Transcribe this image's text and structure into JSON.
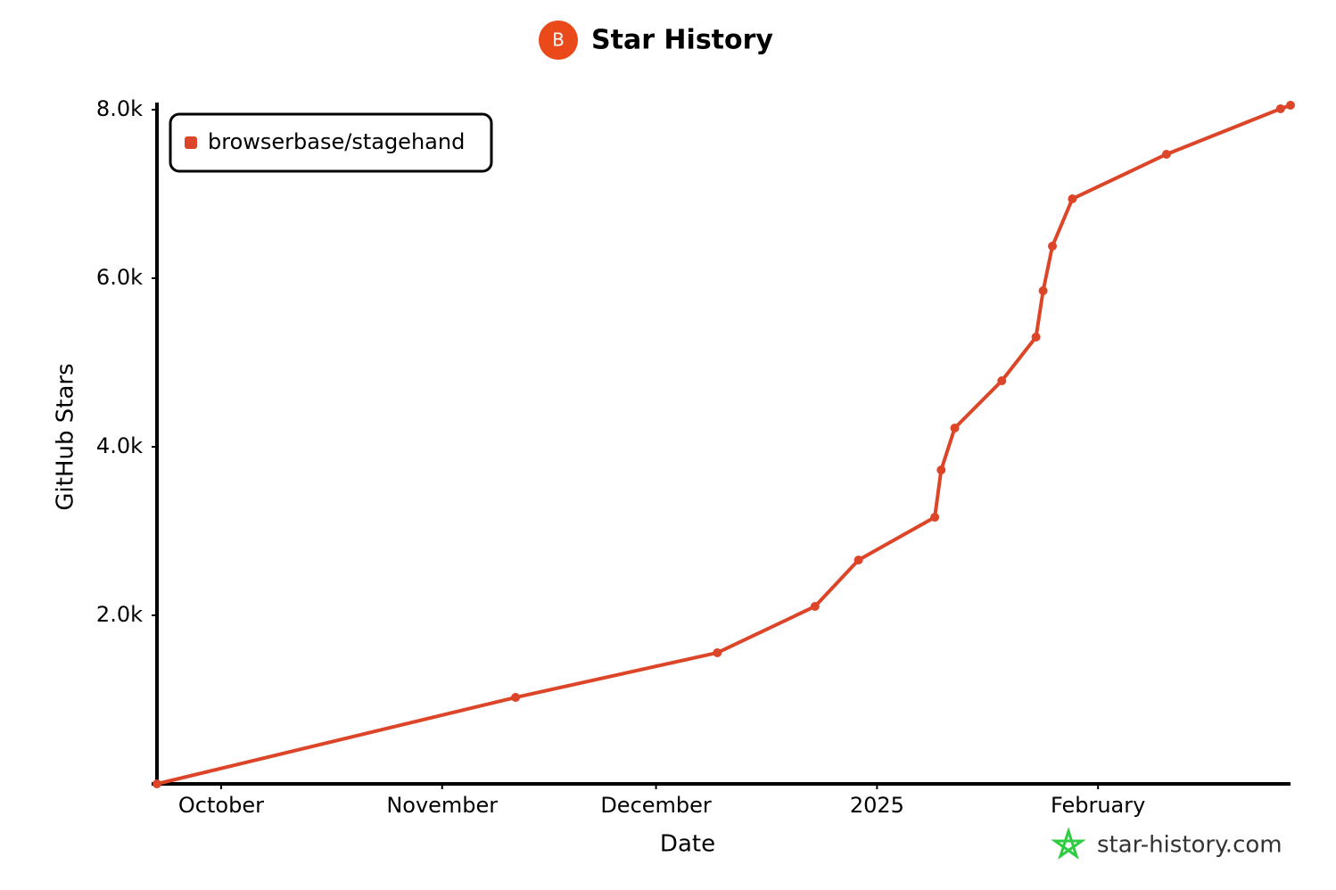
{
  "chart_data": {
    "type": "line",
    "title": "Star History",
    "logo": "B",
    "watermark": "star-history.com",
    "x_label": "Date",
    "y_label": "GitHub Stars",
    "x": [
      -9,
      41.3,
      69.6,
      83.3,
      89.4,
      100.1,
      101,
      102.9,
      109.5,
      114.3,
      115.3,
      116.6,
      119.4,
      132.6,
      148.6,
      150
    ],
    "series": [
      {
        "name": "browserbase/stagehand",
        "color": "#dd4528",
        "values": [
          0,
          1026,
          1556,
          2106,
          2656,
          3164,
          3725,
          4222,
          4783,
          5302,
          5852,
          6381,
          6942,
          7471,
          8011,
          8053
        ]
      }
    ],
    "xlim": [
      -9,
      150
    ],
    "xticks": [
      {
        "value": 0,
        "label": "October"
      },
      {
        "value": 31,
        "label": "November"
      },
      {
        "value": 61,
        "label": "December"
      },
      {
        "value": 92,
        "label": "2025"
      },
      {
        "value": 123,
        "label": "February"
      }
    ],
    "ylim": [
      0,
      8000
    ],
    "yticks": [
      {
        "value": 2000,
        "label": "2.0k"
      },
      {
        "value": 4000,
        "label": "4.0k"
      },
      {
        "value": 6000,
        "label": "6.0k"
      },
      {
        "value": 8000,
        "label": "8.0k"
      }
    ],
    "legend": "top-left"
  }
}
